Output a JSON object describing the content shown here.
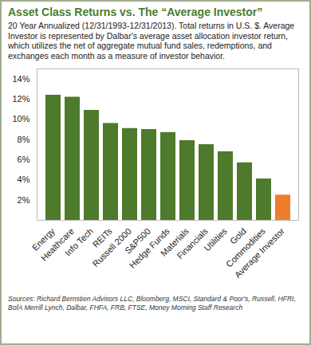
{
  "chart_data": {
    "type": "bar",
    "title": "Asset Class Returns vs. The “Average Investor”",
    "subtitle": "20 Year Annualized (12/31/1993-12/31/2013). Total returns in U.S. $. Average Investor is represented by Dalbar's average asset allocation investor return, which utilizes the net of aggregate mutual fund sales, redemptions, and exchanges each month as a measure of investor behavior.",
    "caption": "Sources: Richard Bernstien Advisors LLC, Bloomberg, MSCI, Standard & Poor's, Russell, HFRI, BofA Merrill Lynch, Dalbar, FHFA, FRB, FTSE, Money Morning Staff Research",
    "categories": [
      "Energy",
      "Healthcare",
      "Info Tech",
      "REITs",
      "Russell 2000",
      "S&P500",
      "Hedge Funds",
      "Materials",
      "Financials",
      "Utilities",
      "Gold",
      "Commodities",
      "Average Investor"
    ],
    "values": [
      12.4,
      12.2,
      10.9,
      9.6,
      9.1,
      9.0,
      8.7,
      7.9,
      7.5,
      6.8,
      5.7,
      4.1,
      2.5
    ],
    "colors": [
      "#4e7a2c",
      "#4e7a2c",
      "#4e7a2c",
      "#4e7a2c",
      "#4e7a2c",
      "#4e7a2c",
      "#4e7a2c",
      "#4e7a2c",
      "#4e7a2c",
      "#4e7a2c",
      "#4e7a2c",
      "#4e7a2c",
      "#f07d2a"
    ],
    "ylim": [
      0,
      15
    ],
    "yticks": [
      {
        "value": 2,
        "label": "2%"
      },
      {
        "value": 4,
        "label": "4%"
      },
      {
        "value": 6,
        "label": "6%"
      },
      {
        "value": 8,
        "label": "8%"
      },
      {
        "value": 10,
        "label": "10%"
      },
      {
        "value": 12,
        "label": "12%"
      },
      {
        "value": 14,
        "label": "14%"
      }
    ],
    "grid": false
  }
}
